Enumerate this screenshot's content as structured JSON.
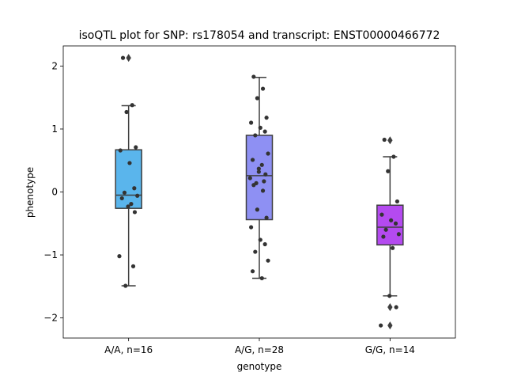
{
  "chart_data": {
    "type": "box",
    "title": "isoQTL plot for SNP: rs178054 and transcript: ENST00000466772",
    "xlabel": "genotype",
    "ylabel": "phenotype",
    "ylim": [
      -2.32,
      2.32
    ],
    "yticks": [
      2,
      1,
      0,
      -1,
      -2
    ],
    "ytick_labels": [
      "2",
      "1",
      "0",
      "−1",
      "−2"
    ],
    "grid": false,
    "categories": [
      "A/A, n=16",
      "A/G, n=28",
      "G/G, n=14"
    ],
    "boxes": [
      {
        "q1": -0.26,
        "median": -0.05,
        "q3": 0.67,
        "whisker_low": -1.49,
        "whisker_high": 1.37,
        "outliers": [
          2.13
        ],
        "color": "#5ab5ec",
        "points": [
          2.13,
          1.38,
          1.27,
          0.71,
          0.66,
          0.46,
          0.06,
          -0.01,
          -0.06,
          -0.1,
          -0.19,
          -0.23,
          -0.32,
          -1.02,
          -1.18,
          -1.49
        ]
      },
      {
        "q1": -0.44,
        "median": 0.26,
        "q3": 0.9,
        "whisker_low": -1.37,
        "whisker_high": 1.82,
        "outliers": [],
        "color": "#8e90f3",
        "points": [
          1.83,
          1.64,
          1.49,
          1.18,
          1.1,
          1.02,
          0.96,
          0.9,
          0.61,
          0.51,
          0.43,
          0.37,
          0.28,
          0.22,
          0.17,
          0.14,
          0.11,
          0.02,
          -0.28,
          -0.41,
          -0.56,
          -0.76,
          -0.83,
          -0.95,
          -1.09,
          -1.26,
          -1.37,
          0.32
        ]
      },
      {
        "q1": -0.84,
        "median": -0.56,
        "q3": -0.21,
        "whisker_low": -1.65,
        "whisker_high": 0.56,
        "outliers": [
          0.82,
          -1.83,
          -2.12
        ],
        "color": "#b44af0",
        "points": [
          0.83,
          0.56,
          0.33,
          -0.15,
          -0.36,
          -0.45,
          -0.5,
          -0.6,
          -0.67,
          -0.71,
          -0.89,
          -1.65,
          -1.83,
          -2.12
        ]
      }
    ]
  }
}
